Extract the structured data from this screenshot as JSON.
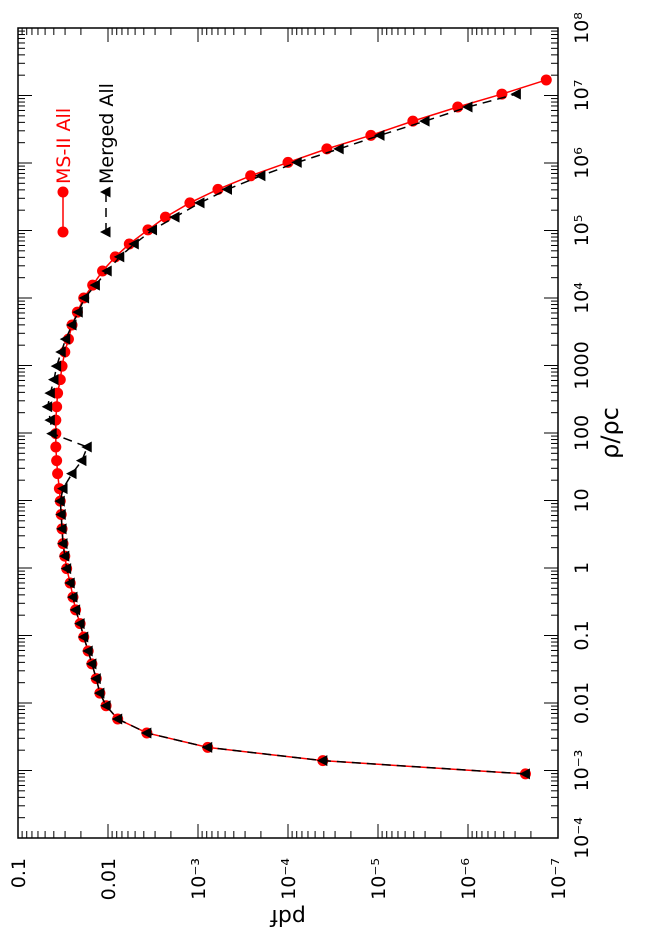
{
  "chart_data": {
    "type": "line",
    "xlabel": "ρ/ρc",
    "ylabel": "pdf",
    "xscale": "log",
    "yscale": "log",
    "xlim": [
      0.0001,
      100000000
    ],
    "ylim": [
      1e-07,
      0.1
    ],
    "xticks": [
      {
        "value": 0.0001,
        "label": "10⁻⁴"
      },
      {
        "value": 0.001,
        "label": "10⁻³"
      },
      0.01,
      0.1,
      1,
      10,
      100,
      1000,
      {
        "value": 10000,
        "label": "10⁴"
      },
      {
        "value": 100000,
        "label": "10⁵"
      },
      {
        "value": 1000000,
        "label": "10⁶"
      },
      {
        "value": 10000000,
        "label": "10⁷"
      },
      {
        "value": 100000000,
        "label": "10⁸"
      }
    ],
    "yticks": [
      {
        "value": 1e-07,
        "label": "10⁻⁷"
      },
      {
        "value": 1e-06,
        "label": "10⁻⁶"
      },
      {
        "value": 1e-05,
        "label": "10⁻⁵"
      },
      {
        "value": 0.0001,
        "label": "10⁻⁴"
      },
      {
        "value": 0.001,
        "label": "10⁻³"
      },
      0.01,
      0.1
    ],
    "legend": "upper right",
    "series": [
      {
        "name": "MS-II All",
        "color": "#ff0000",
        "marker": "circle",
        "dash": false,
        "x": [
          0.00089,
          0.0014,
          0.0022,
          0.0036,
          0.0058,
          0.0091,
          0.014,
          0.023,
          0.038,
          0.059,
          0.095,
          0.15,
          0.24,
          0.37,
          0.6,
          0.98,
          1.5,
          2.3,
          3.8,
          6.2,
          9.8,
          15,
          25,
          39,
          62,
          98,
          155,
          245,
          389,
          617,
          977,
          1585,
          2455,
          3981,
          6166,
          10000,
          15500,
          25100,
          40700,
          63100,
          102000,
          158000,
          257000,
          407000,
          646000,
          1020000,
          1620000,
          2570000,
          4170000,
          6760000,
          10500000,
          17000000
        ],
        "values": [
          2.3e-07,
          4.1e-05,
          0.00078,
          0.0037,
          0.0078,
          0.0105,
          0.0123,
          0.0135,
          0.0151,
          0.0166,
          0.0186,
          0.0204,
          0.0229,
          0.0245,
          0.0263,
          0.0288,
          0.0302,
          0.0316,
          0.0324,
          0.0331,
          0.0339,
          0.0347,
          0.0363,
          0.0372,
          0.038,
          0.038,
          0.038,
          0.0372,
          0.0363,
          0.0339,
          0.0324,
          0.0302,
          0.0275,
          0.0251,
          0.0219,
          0.0186,
          0.0148,
          0.0115,
          0.0083,
          0.0058,
          0.0036,
          0.0023,
          0.00123,
          0.0006,
          0.00026,
          0.0001,
          3.7e-05,
          1.2e-05,
          4.1e-06,
          1.3e-06,
          4.2e-07,
          1.35e-07
        ]
      },
      {
        "name": "Merged All",
        "color": "#000000",
        "marker": "triangle",
        "dash": true,
        "x": [
          0.00089,
          0.0014,
          0.0022,
          0.0036,
          0.0058,
          0.0091,
          0.014,
          0.023,
          0.038,
          0.059,
          0.095,
          0.15,
          0.24,
          0.37,
          0.6,
          0.98,
          1.5,
          2.3,
          3.8,
          6.2,
          9.8,
          15,
          25,
          39,
          62,
          98,
          155,
          245,
          389,
          617,
          977,
          1585,
          2455,
          3981,
          6166,
          10000,
          15500,
          25100,
          40700,
          63100,
          102000,
          158000,
          257000,
          407000,
          646000,
          1020000,
          1620000,
          2570000,
          4170000,
          6760000,
          10500000
        ],
        "values": [
          2.3e-07,
          4.1e-05,
          0.00078,
          0.0037,
          0.0078,
          0.0105,
          0.0123,
          0.0135,
          0.0151,
          0.0166,
          0.0186,
          0.0204,
          0.0229,
          0.0245,
          0.0263,
          0.0288,
          0.0302,
          0.0316,
          0.0324,
          0.0331,
          0.0339,
          0.0316,
          0.0251,
          0.0195,
          0.017,
          0.0417,
          0.0437,
          0.0468,
          0.0437,
          0.0398,
          0.0372,
          0.0331,
          0.0295,
          0.0251,
          0.0214,
          0.0182,
          0.0138,
          0.0102,
          0.0074,
          0.0051,
          0.0032,
          0.0018,
          0.00095,
          0.00047,
          0.0002,
          7.9e-05,
          2.7e-05,
          9.5e-06,
          3e-06,
          1e-06,
          2.9e-07
        ]
      }
    ]
  }
}
